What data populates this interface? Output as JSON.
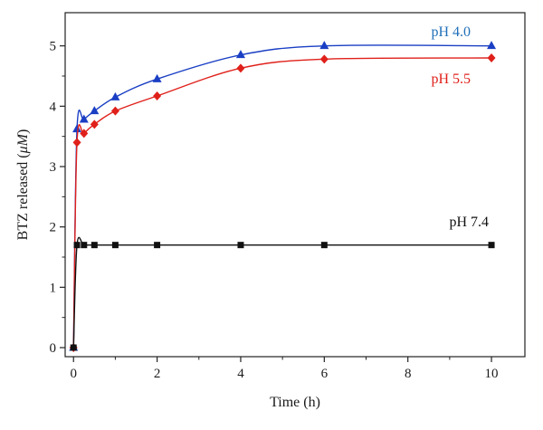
{
  "chart_data": {
    "type": "line",
    "xlabel": "Time (h)",
    "ylabel_prefix": "BTZ released (",
    "ylabel_unit": "μM",
    "ylabel_suffix": ")",
    "xlim": [
      -0.2,
      10.8
    ],
    "ylim": [
      -0.15,
      5.55
    ],
    "xticks": [
      0,
      2,
      4,
      6,
      8,
      10
    ],
    "yticks": [
      0,
      1,
      2,
      3,
      4,
      5
    ],
    "grid": false,
    "series": [
      {
        "name": "pH 4.0",
        "color": "#1a3fc4",
        "label_color": "#1f6fb8",
        "marker": "triangle",
        "x": [
          0,
          0.083,
          0.25,
          0.5,
          1,
          2,
          4,
          6,
          10
        ],
        "y": [
          0,
          3.62,
          3.78,
          3.92,
          4.15,
          4.45,
          4.85,
          5.0,
          5.0
        ]
      },
      {
        "name": "pH 5.5",
        "color": "#e0201a",
        "label_color": "#e0201a",
        "marker": "diamond",
        "x": [
          0,
          0.083,
          0.25,
          0.5,
          1,
          2,
          4,
          6,
          10
        ],
        "y": [
          0,
          3.4,
          3.55,
          3.7,
          3.92,
          4.17,
          4.63,
          4.78,
          4.8
        ]
      },
      {
        "name": "pH 7.4",
        "color": "#111111",
        "label_color": "#111111",
        "marker": "square",
        "x": [
          0,
          0.083,
          0.25,
          0.5,
          1,
          2,
          4,
          6,
          10
        ],
        "y": [
          0,
          1.7,
          1.7,
          1.7,
          1.7,
          1.7,
          1.7,
          1.7,
          1.7
        ]
      }
    ]
  }
}
